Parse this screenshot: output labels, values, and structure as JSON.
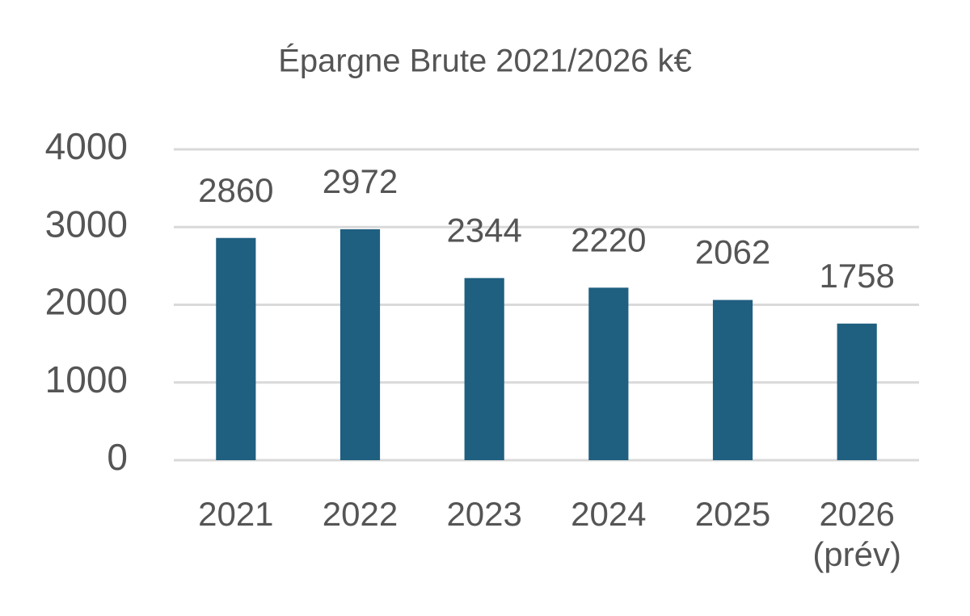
{
  "chart_data": {
    "type": "bar",
    "title": "Épargne Brute 2021/2026 k€",
    "categories": [
      "2021",
      "2022",
      "2023",
      "2024",
      "2025",
      "2026 (prév)"
    ],
    "values": [
      2860,
      2972,
      2344,
      2220,
      2062,
      1758
    ],
    "color": "#1f5f80",
    "ylim": [
      0,
      4000
    ],
    "yticks": [
      0,
      1000,
      2000,
      3000,
      4000
    ],
    "grid": true
  }
}
